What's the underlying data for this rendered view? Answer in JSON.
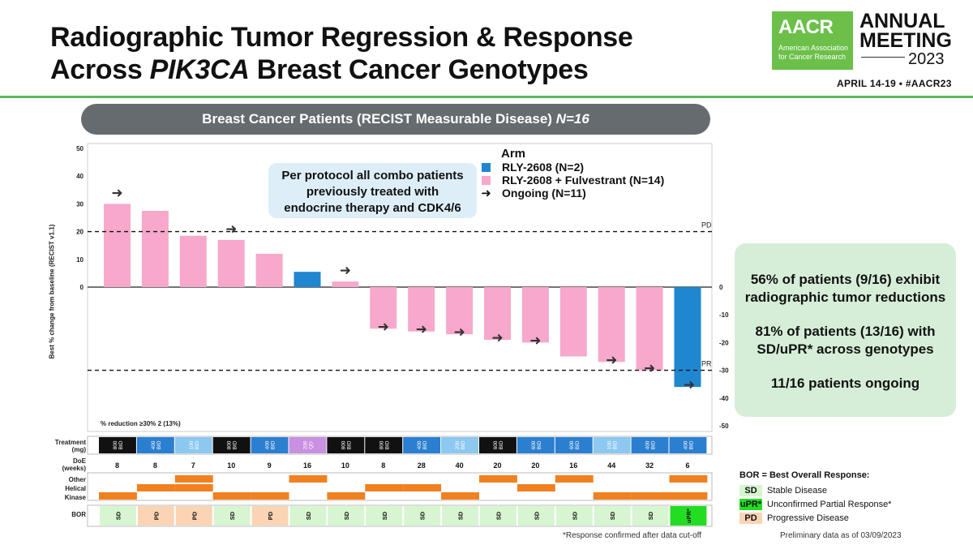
{
  "title": {
    "line1": "Radiographic Tumor Regression & Response",
    "line2_pre": "Across ",
    "line2_gene": "PIK3CA",
    "line2_post": " Breast Cancer Genotypes"
  },
  "brand": {
    "logo_text": "AACR",
    "logo_sub1": "American Association",
    "logo_sub2": "for Cancer Research",
    "meeting_line1": "ANNUAL",
    "meeting_line2": "MEETING",
    "meeting_year": "2023",
    "dates": "APRIL 14-19 • #AACR23",
    "logo_color": "#6cc04a"
  },
  "banner": {
    "text": "Breast Cancer Patients (RECIST Measurable Disease) ",
    "n": "N=16"
  },
  "callout": {
    "line1": "Per protocol all combo patients",
    "line2": "previously treated with",
    "line3": "endocrine therapy and CDK4/6"
  },
  "summary": {
    "s1a": "56% of patients (9/16) exhibit",
    "s1b": "radiographic tumor reductions",
    "s2a": "81% of patients (13/16) with",
    "s2b": "SD/uPR* across genotypes",
    "s3": "11/16 patients ongoing"
  },
  "legend": {
    "header": "Arm",
    "mono": "RLY-2608 (N=2)",
    "combo": "RLY-2608 + Fulvestrant (N=14)",
    "ongoing": "Ongoing (N=11)",
    "arrow_glyph": "➜"
  },
  "colors": {
    "mono": "#1f86d0",
    "combo": "#f7a8cb",
    "kinase": "#f08020",
    "sd": "#d6f5d0",
    "upr": "#22dd22",
    "pd": "#fbd4b4",
    "dark": "#111111",
    "blue": "#2b7fd0",
    "lightblue": "#8cc8f0",
    "purple": "#c98fe0"
  },
  "chart_data": {
    "type": "bar",
    "title": "Best % change from baseline (RECIST v1.1)",
    "ylabel": "Best % change from baseline (RECIST v1.1)",
    "ylim": [
      -50,
      50
    ],
    "left_ticks": [
      "50",
      "40",
      "30",
      "20",
      "10",
      "0"
    ],
    "right_ticks": [
      "0",
      "-10",
      "-20",
      "-30",
      "-40",
      "-50"
    ],
    "thresholds": [
      {
        "label": "PD",
        "value": 20
      },
      {
        "label": "PR",
        "value": -30
      }
    ],
    "partial_note": "% reduction ≥30%   2 (13%)",
    "values": [
      30,
      27.5,
      18.5,
      17,
      12,
      5.5,
      2,
      -15,
      -16,
      -17,
      -19,
      -20,
      -25,
      -27,
      -30,
      -36
    ],
    "arm": [
      "combo",
      "combo",
      "combo",
      "combo",
      "combo",
      "mono",
      "combo",
      "combo",
      "combo",
      "combo",
      "combo",
      "combo",
      "combo",
      "combo",
      "combo",
      "mono"
    ],
    "ongoing": [
      true,
      false,
      false,
      true,
      false,
      false,
      true,
      true,
      true,
      true,
      true,
      true,
      false,
      true,
      true,
      true
    ]
  },
  "table": {
    "treatment_label": "Treatment",
    "treatment_unit": "(mg)",
    "treatment": [
      "800 BID",
      "400 BID",
      "100 BID",
      "800 BID",
      "400 BID",
      "200 QD",
      "800 BID",
      "800 BID",
      "400 BID",
      "200 BID",
      "600 BID",
      "600 BID",
      "600 BID",
      "100 BID",
      "400 BID",
      "400 BID"
    ],
    "treatment_color": [
      "dark",
      "blue",
      "lightblue",
      "dark",
      "blue",
      "purple",
      "dark",
      "dark",
      "blue",
      "lightblue",
      "dark",
      "blue",
      "blue",
      "lightblue",
      "blue",
      "blue"
    ],
    "doe_label": "DoE",
    "doe_unit": "(weeks)",
    "doe": [
      "8",
      "8",
      "7",
      "10",
      "9",
      "16",
      "10",
      "8",
      "28",
      "40",
      "20",
      "20",
      "16",
      "44",
      "32",
      "6"
    ],
    "genotype_labels": [
      "Other",
      "Helical",
      "Kinase"
    ],
    "genotype": [
      "Kinase",
      "Helical",
      "Other+Helical",
      "Kinase",
      "Kinase",
      "Other",
      "Kinase",
      "Helical",
      "Helical",
      "Kinase",
      "Other",
      "Helical",
      "Other",
      "Kinase",
      "Kinase",
      "Other+Kinase"
    ],
    "bor_label": "BOR",
    "bor": [
      "SD",
      "PD",
      "PD",
      "SD",
      "PD",
      "SD",
      "SD",
      "SD",
      "SD",
      "SD",
      "SD",
      "SD",
      "SD",
      "SD",
      "SD",
      "uPR*"
    ]
  },
  "bor_legend": {
    "header": "BOR = Best Overall Response:",
    "items": [
      {
        "code": "SD",
        "text": "Stable Disease"
      },
      {
        "code": "uPR*",
        "text": "Unconfirmed Partial Response*"
      },
      {
        "code": "PD",
        "text": "Progressive Disease"
      }
    ]
  },
  "footnote": "*Response confirmed after data cut-off",
  "prelim": "Preliminary data as of 03/09/2023"
}
